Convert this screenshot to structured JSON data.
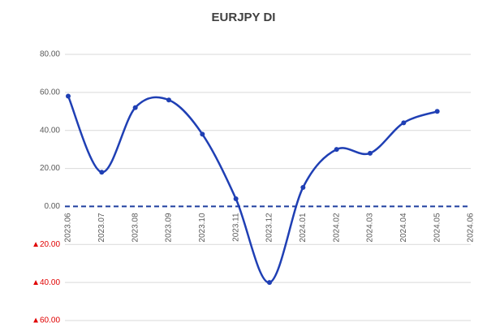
{
  "chart_data": {
    "type": "line",
    "title": "EURJPY DI",
    "categories": [
      "2023.06",
      "2023.07",
      "2023.08",
      "2023.09",
      "2023.10",
      "2023.11",
      "2023.12",
      "2024.01",
      "2024.02",
      "2024.03",
      "2024.04",
      "2024.05",
      "2024.06"
    ],
    "series": [
      {
        "name": "EURJPY DI",
        "color": "#1f3fb4",
        "values": [
          58,
          18,
          52,
          56,
          38,
          4,
          -40,
          10,
          30,
          28,
          44,
          50,
          null
        ]
      }
    ],
    "ylim": [
      -60,
      80
    ],
    "yticks": [
      {
        "value": 80,
        "label": "80.00"
      },
      {
        "value": 60,
        "label": "60.00"
      },
      {
        "value": 40,
        "label": "40.00"
      },
      {
        "value": 20,
        "label": "20.00"
      },
      {
        "value": 0,
        "label": "0.00"
      },
      {
        "value": -20,
        "label": "▲20.00"
      },
      {
        "value": -40,
        "label": "▲40.00"
      },
      {
        "value": -60,
        "label": "▲60.00"
      }
    ],
    "grid": true,
    "negative_label_color": "#e00000",
    "zero_line_color": "#1f3f9f"
  }
}
